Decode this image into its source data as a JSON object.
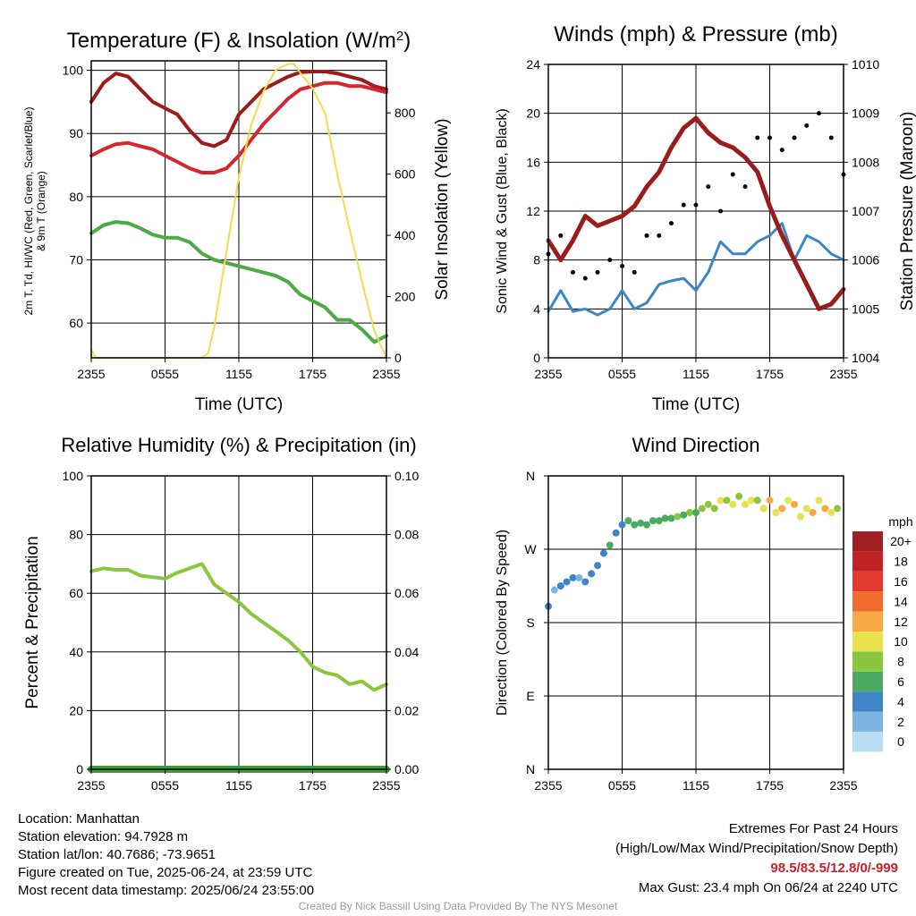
{
  "chart_data": [
    {
      "type": "line",
      "title": "Temperature (F) & Insolation (W/m2)",
      "title_main": "Temperature (F) & Insolation (W/m",
      "title_sup": "2",
      "title_close": ")",
      "xlabel": "Time (UTC)",
      "ylabel_left_line1": "2m T, Td, HI/WC (Red, Green, Scarlet/Blue)",
      "ylabel_left_line2": "& 9m T (Orange)",
      "ylabel_right": "Solar Insolation (Yellow)",
      "x_ticks": [
        "2355",
        "0555",
        "1155",
        "1755",
        "2355"
      ],
      "x_range_hours": [
        0,
        24
      ],
      "y_left_ticks": [
        60,
        70,
        80,
        90,
        100
      ],
      "y_left_range": [
        54.5,
        101.5
      ],
      "y_right_ticks": [
        0,
        200,
        400,
        600,
        800
      ],
      "y_right_range": [
        0,
        970
      ],
      "grid": true,
      "series": [
        {
          "color": "#9b1c1c",
          "axis": "left",
          "x": [
            0,
            1,
            2,
            3,
            4,
            5,
            6,
            7,
            8,
            9,
            10,
            11,
            12,
            13,
            14,
            15,
            16,
            17,
            18,
            19,
            20,
            21,
            22,
            23,
            24
          ],
          "values": [
            95,
            98,
            99.5,
            99,
            97,
            95,
            94,
            93,
            90.5,
            88.5,
            88,
            89,
            93,
            95,
            97,
            98,
            99,
            99.7,
            99.8,
            99.8,
            99.5,
            99,
            98.5,
            97.5,
            97
          ]
        },
        {
          "color": "#d6262d",
          "axis": "left",
          "x": [
            0,
            1,
            2,
            3,
            4,
            5,
            6,
            7,
            8,
            9,
            10,
            11,
            12,
            13,
            14,
            15,
            16,
            17,
            18,
            19,
            20,
            21,
            22,
            23,
            24
          ],
          "values": [
            86.5,
            87.5,
            88.3,
            88.5,
            88,
            87.5,
            86.5,
            85.5,
            84.5,
            83.8,
            83.8,
            84.5,
            86.5,
            89,
            91.5,
            93.5,
            95.5,
            97,
            97.5,
            98,
            98,
            97.5,
            97.5,
            97,
            96.5
          ]
        },
        {
          "color": "#4aaa43",
          "axis": "left",
          "x": [
            0,
            1,
            2,
            3,
            4,
            5,
            6,
            7,
            8,
            9,
            10,
            11,
            12,
            13,
            14,
            15,
            16,
            17,
            18,
            19,
            20,
            21,
            22,
            23,
            24
          ],
          "values": [
            74.2,
            75.5,
            76,
            75.8,
            75,
            74,
            73.5,
            73.5,
            72.8,
            71,
            70,
            69.5,
            69,
            68.5,
            68,
            67.5,
            66.5,
            64.5,
            63.5,
            62.5,
            60.5,
            60.5,
            59,
            57,
            58
          ]
        },
        {
          "color": "#f2dc4d",
          "axis": "right",
          "x": [
            0,
            0.4,
            1,
            2,
            3,
            4,
            5,
            6,
            7,
            8,
            9,
            9.5,
            10,
            11,
            12,
            13,
            14,
            15,
            16,
            16.5,
            17,
            18,
            19,
            20,
            21,
            22,
            23,
            24
          ],
          "values": [
            25,
            0,
            0,
            0,
            0,
            0,
            0,
            0,
            0,
            0,
            0,
            15,
            100,
            350,
            590,
            760,
            870,
            940,
            960,
            960,
            930,
            880,
            800,
            600,
            420,
            250,
            90,
            0
          ]
        }
      ]
    },
    {
      "type": "line",
      "title": "Winds (mph) & Pressure (mb)",
      "xlabel": "Time (UTC)",
      "ylabel_left": "Sonic Wind & Gust (Blue, Black)",
      "ylabel_right": "Station Pressure (Maroon)",
      "x_ticks": [
        "2355",
        "0555",
        "1155",
        "1755",
        "2355"
      ],
      "x_range_hours": [
        0,
        24
      ],
      "y_left_ticks": [
        0,
        4,
        8,
        12,
        16,
        20,
        24
      ],
      "y_left_range": [
        0,
        24
      ],
      "y_right_ticks": [
        1004,
        1005,
        1006,
        1007,
        1008,
        1009,
        1010
      ],
      "y_right_range": [
        1004,
        1010
      ],
      "grid": true,
      "series": [
        {
          "name": "Sonic Wind",
          "color": "#3a86c8",
          "axis": "left",
          "x": [
            0,
            1,
            2,
            3,
            4,
            5,
            6,
            7,
            8,
            9,
            10,
            11,
            12,
            13,
            14,
            15,
            16,
            17,
            18,
            19,
            20,
            21,
            22,
            23,
            24
          ],
          "values": [
            3.8,
            5.5,
            3.8,
            4,
            3.5,
            4,
            5.5,
            4,
            4.5,
            6,
            6.3,
            6.5,
            5.5,
            7,
            9.5,
            8.5,
            8.5,
            9.5,
            10,
            11,
            8,
            10,
            9.5,
            8.5,
            8
          ]
        },
        {
          "name": "Gust",
          "color": "#000000",
          "axis": "left",
          "style": "scatter",
          "x": [
            0,
            1,
            2,
            3,
            4,
            5,
            6,
            7,
            8,
            9,
            10,
            11,
            12,
            13,
            14,
            15,
            16,
            17,
            18,
            19,
            20,
            21,
            22,
            23,
            24
          ],
          "values": [
            8.5,
            10,
            7,
            6.5,
            7,
            8,
            7.5,
            7,
            10,
            10,
            11,
            12.5,
            12.5,
            14,
            12,
            15,
            14,
            18,
            18,
            17,
            18,
            19,
            20,
            18,
            15
          ]
        },
        {
          "name": "Station Pressure",
          "color": "#9b1c1c",
          "axis": "right",
          "x": [
            0,
            1,
            2,
            3,
            4,
            5,
            6,
            7,
            8,
            9,
            10,
            11,
            12,
            13,
            14,
            15,
            16,
            17,
            18,
            19,
            20,
            21,
            22,
            23,
            24
          ],
          "values": [
            1006.4,
            1006.0,
            1006.4,
            1006.9,
            1006.7,
            1006.8,
            1006.9,
            1007.1,
            1007.5,
            1007.8,
            1008.3,
            1008.7,
            1008.9,
            1008.6,
            1008.4,
            1008.3,
            1008.1,
            1007.8,
            1007.1,
            1006.5,
            1006.0,
            1005.5,
            1005.0,
            1005.1,
            1005.4
          ]
        }
      ]
    },
    {
      "type": "line",
      "title": "Relative Humidity (%) & Precipitation (in)",
      "ylabel_left": "Percent & Precipitation",
      "x_ticks": [
        "2355",
        "0555",
        "1155",
        "1755",
        "2355"
      ],
      "x_range_hours": [
        0,
        24
      ],
      "y_left_ticks": [
        0,
        20,
        40,
        60,
        80,
        100
      ],
      "y_left_range": [
        0,
        100
      ],
      "y_right_ticks": [
        "0.00",
        "0.02",
        "0.04",
        "0.06",
        "0.08",
        "0.10"
      ],
      "y_right_range": [
        0,
        0.1
      ],
      "grid": true,
      "series": [
        {
          "name": "Relative Humidity",
          "color": "#8cc63f",
          "axis": "left",
          "x": [
            0,
            1,
            2,
            3,
            4,
            5,
            6,
            7,
            8,
            9,
            10,
            11,
            12,
            13,
            14,
            15,
            16,
            17,
            18,
            19,
            20,
            21,
            22,
            23,
            24
          ],
          "values": [
            67.5,
            68.5,
            68,
            68,
            66,
            65.5,
            65,
            67,
            68.5,
            70,
            63,
            60,
            57,
            53,
            50,
            47,
            44,
            40,
            35,
            33,
            32,
            29,
            30,
            27,
            29
          ]
        },
        {
          "name": "Precipitation",
          "color": "#3a9c3a",
          "axis": "right",
          "x": [
            0,
            24
          ],
          "values": [
            0,
            0
          ]
        }
      ]
    },
    {
      "type": "scatter",
      "title": "Wind Direction",
      "ylabel_left": "Direction (Colored By Speed)",
      "x_ticks": [
        "2355",
        "0555",
        "1155",
        "1755",
        "2355"
      ],
      "x_range_hours": [
        0,
        24
      ],
      "y_ticks": [
        "N",
        "E",
        "S",
        "W",
        "N"
      ],
      "y_range_deg": [
        0,
        360
      ],
      "grid": true,
      "colorbar_title": "mph",
      "colorbar_labels": [
        "20+",
        "18",
        "16",
        "14",
        "12",
        "10",
        "8",
        "6",
        "4",
        "2",
        "0"
      ],
      "colorbar_colors": [
        "#a01f23",
        "#c02226",
        "#e03a2f",
        "#f06d2d",
        "#f8a845",
        "#ebe04e",
        "#8cc63f",
        "#4aaa62",
        "#3d85c6",
        "#7eb4e0",
        "#b8def3"
      ],
      "points": {
        "x": [
          0,
          0.5,
          1,
          1.5,
          2,
          2.5,
          3,
          3.5,
          4,
          4.5,
          5,
          5.5,
          6,
          6.5,
          7,
          7.5,
          8,
          8.5,
          9,
          9.5,
          10,
          10.5,
          11,
          11.5,
          12,
          12.5,
          13,
          13.5,
          14,
          14.5,
          15,
          15.5,
          16,
          16.5,
          17,
          17.5,
          18,
          18.5,
          19,
          19.5,
          20,
          20.5,
          21,
          21.5,
          22,
          22.5,
          23,
          23.5
        ],
        "deg": [
          200,
          220,
          225,
          230,
          235,
          235,
          230,
          240,
          250,
          265,
          275,
          290,
          300,
          305,
          300,
          302,
          300,
          305,
          305,
          308,
          308,
          310,
          312,
          315,
          315,
          320,
          325,
          320,
          330,
          330,
          325,
          335,
          325,
          330,
          330,
          320,
          330,
          315,
          320,
          330,
          325,
          310,
          320,
          315,
          330,
          320,
          315,
          320
        ],
        "mph": [
          3,
          2,
          3,
          3,
          4,
          2,
          3,
          4,
          4,
          3,
          5,
          4,
          4,
          6,
          6,
          5,
          6,
          6,
          5,
          6,
          6,
          7,
          6,
          7,
          6,
          8,
          7,
          8,
          9,
          7,
          10,
          8,
          9,
          10,
          8,
          10,
          11,
          9,
          12,
          10,
          11,
          9,
          10,
          12,
          9,
          11,
          10,
          8
        ]
      }
    }
  ],
  "info_left": {
    "location": "Location: Manhattan",
    "elevation": "Station elevation: 94.7928 m",
    "latlon": "Station lat/lon: 40.7686; -73.9651",
    "created": "Figure created on Tue, 2025-06-24, at 23:59 UTC",
    "recent": "Most recent data timestamp: 2025/06/24 23:55:00"
  },
  "info_right": {
    "extremes_title": "Extremes For Past 24 Hours",
    "extremes_legend": "(High/Low/Max Wind/Precipitation/Snow Depth)",
    "extremes_values": "98.5/83.5/12.8/0/-999",
    "max_gust": "Max Gust: 23.4 mph On 06/24 at 2240 UTC"
  },
  "credit": "Created By Nick Bassill Using Data Provided By The NYS Mesonet"
}
